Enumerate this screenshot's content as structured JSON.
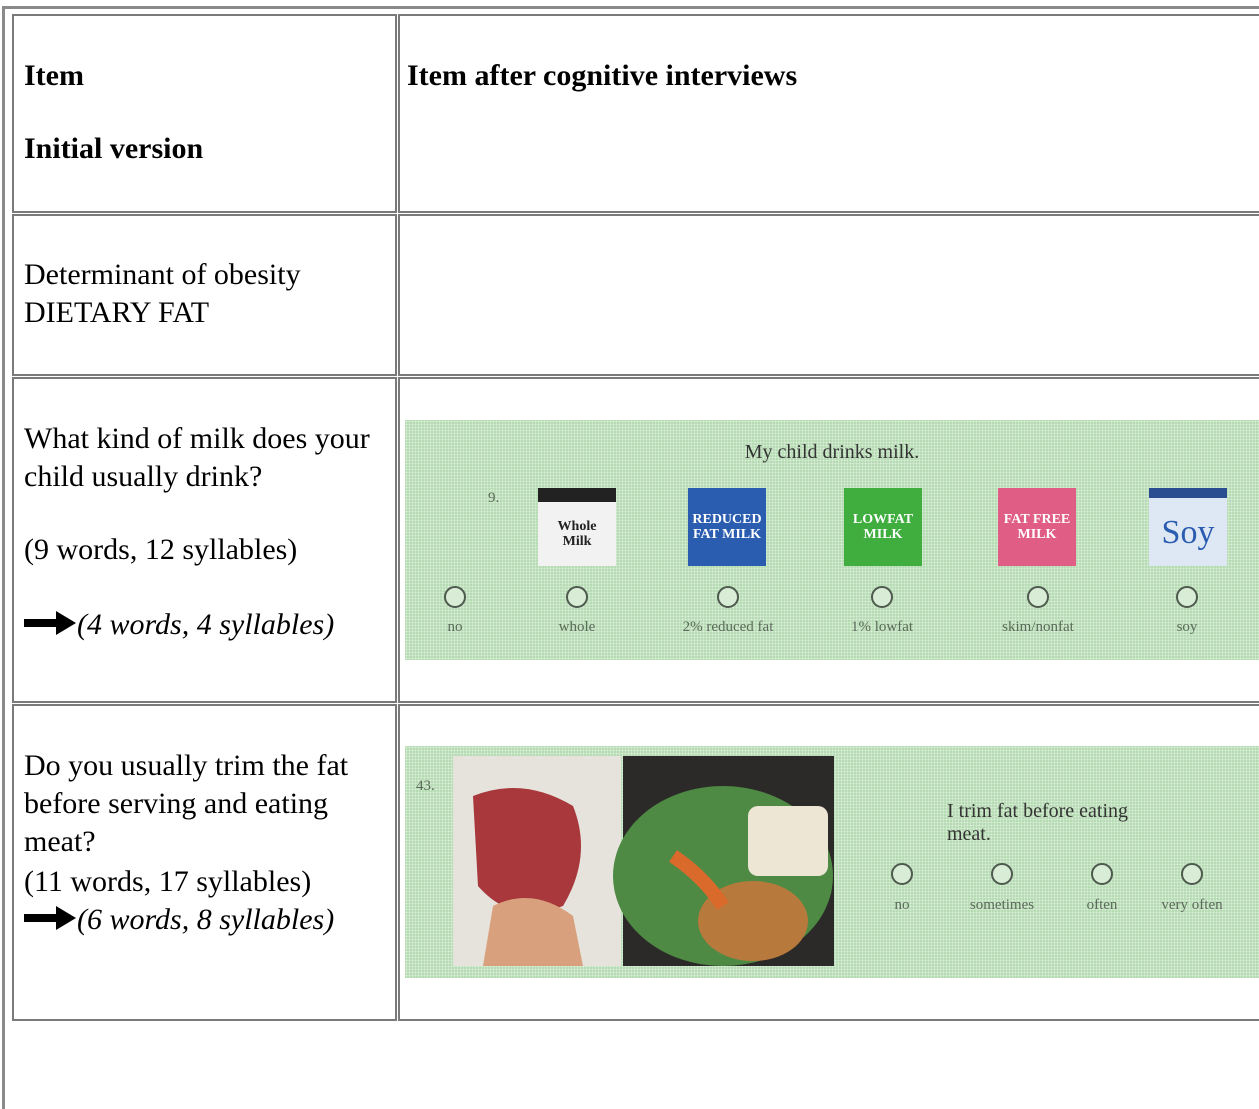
{
  "table": {
    "header": {
      "left": [
        "Item",
        "Initial version"
      ],
      "right": "Item after cognitive interviews"
    },
    "rows": [
      {
        "left": [
          "Determinant of obesity",
          "DIETARY FAT"
        ]
      },
      {
        "left": [
          "What kind of milk does your child usually drink?",
          "(9 words, 12 syllables)"
        ],
        "revised_count": "(4 words, 4 syllables)",
        "survey": {
          "number": "9.",
          "question": "My child drinks milk.",
          "cartons": [
            "Whole Milk",
            "REDUCED FAT MILK",
            "LOWFAT MILK",
            "FAT FREE MILK",
            "Soy"
          ],
          "options": [
            "no",
            "whole",
            "2% reduced fat",
            "1% lowfat",
            "skim/nonfat",
            "soy"
          ]
        }
      },
      {
        "left": [
          "Do you usually trim the fat before serving and eating meat?",
          "(11 words, 17 syllables)"
        ],
        "revised_count": "(6 words, 8 syllables)",
        "survey": {
          "number": "43.",
          "question": "I trim fat before eating meat.",
          "options": [
            "no",
            "sometimes",
            "often",
            "very often"
          ]
        }
      }
    ]
  }
}
